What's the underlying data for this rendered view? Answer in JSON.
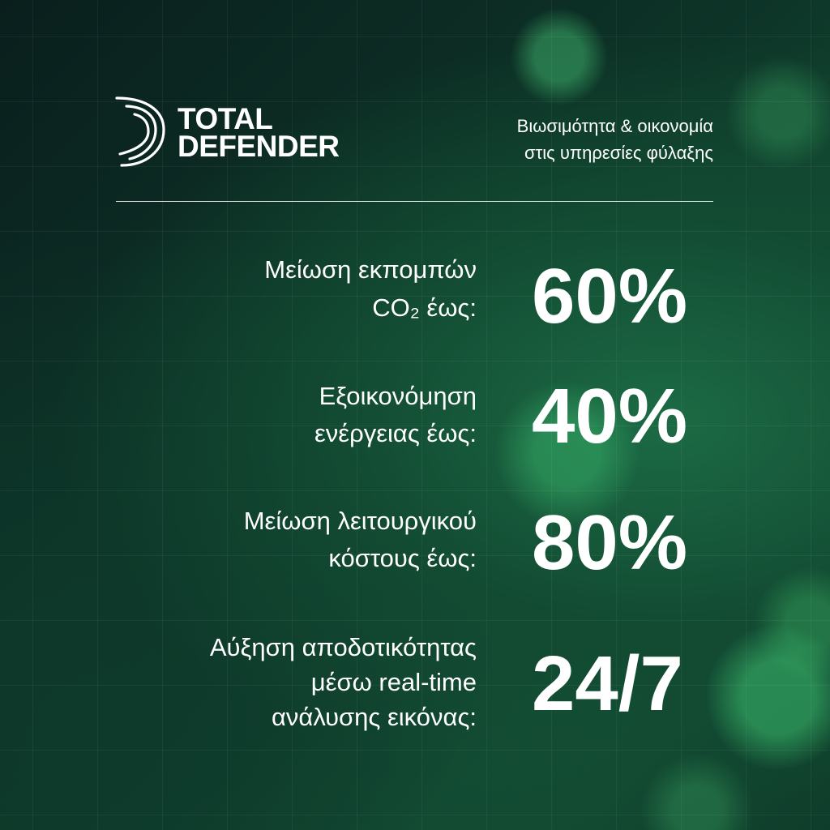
{
  "header": {
    "logo": [
      "TOTAL",
      "DEFENDER"
    ],
    "tagline": [
      "Βιωσιμότητα & οικονομία",
      "στις υπηρεσίες φύλαξης"
    ]
  },
  "stats": [
    {
      "label": [
        "Μείωση εκπομπών",
        "CO₂ έως:"
      ],
      "value": "60%"
    },
    {
      "label": [
        "Εξοικονόμηση",
        "ενέργειας έως:"
      ],
      "value": "40%"
    },
    {
      "label": [
        "Μείωση λειτουργικού",
        "κόστους έως:"
      ],
      "value": "80%"
    },
    {
      "label": [
        "Αύξηση αποδοτικότητας",
        "μέσω real-time",
        "ανάλυσης εικόνας:"
      ],
      "value": "24/7"
    }
  ]
}
